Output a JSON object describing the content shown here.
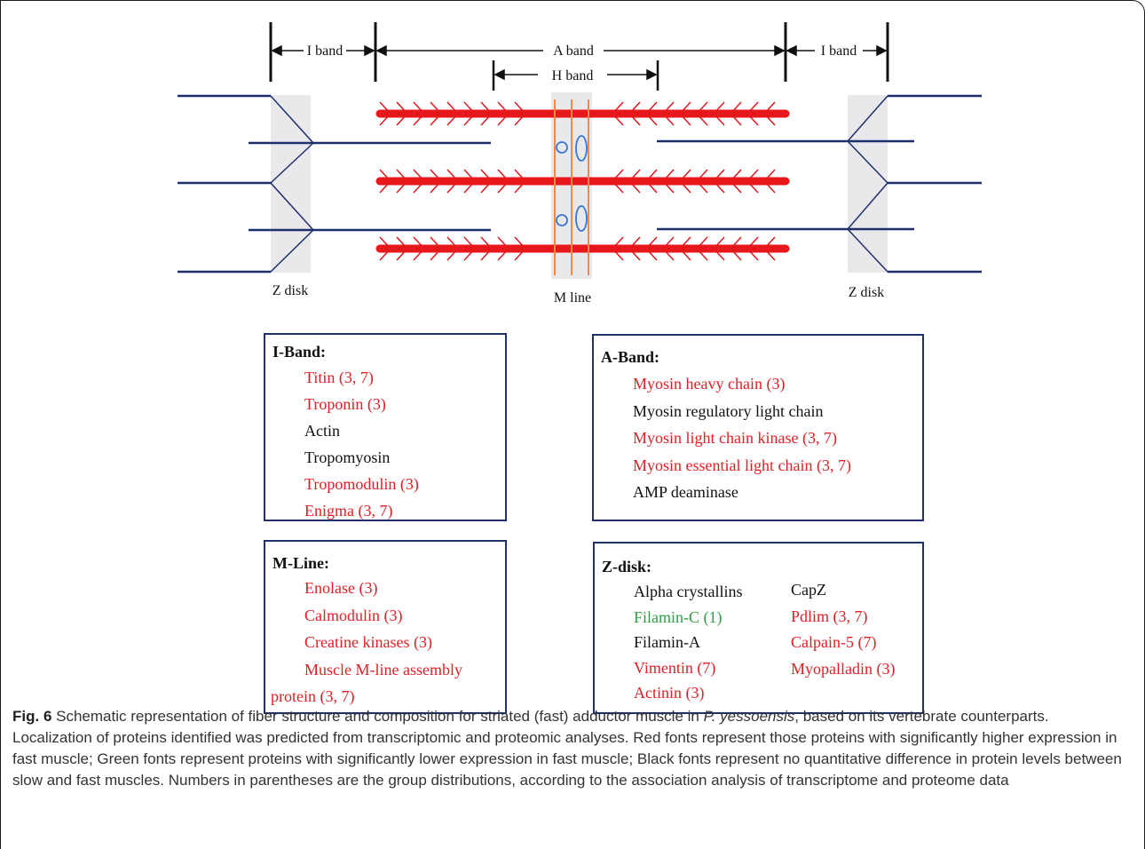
{
  "diagram": {
    "labels": {
      "i_band_left": "I band",
      "a_band": "A band",
      "i_band_right": "I band",
      "h_band": "H band",
      "z_disk_left": "Z disk",
      "m_line": "M line",
      "z_disk_right": "Z disk"
    },
    "colors": {
      "thick_filament": "#e8171c",
      "thin_filament": "#1f2f6b",
      "m_line": "#ef8a4a",
      "z_disk_shade": "#e9e9ec",
      "ellipse": "#3a76d6"
    }
  },
  "boxes": {
    "i_band": {
      "title": "I-Band:",
      "items": [
        {
          "text": "Titin (3, 7)",
          "color": "red"
        },
        {
          "text": "Troponin (3)",
          "color": "red"
        },
        {
          "text": "Actin",
          "color": "black"
        },
        {
          "text": "Tropomyosin",
          "color": "black"
        },
        {
          "text": "Tropomodulin (3)",
          "color": "red"
        },
        {
          "text": "Enigma (3, 7)",
          "color": "red"
        }
      ]
    },
    "a_band": {
      "title": "A-Band:",
      "items": [
        {
          "text": "Myosin heavy chain (3)",
          "color": "red"
        },
        {
          "text": "Myosin regulatory light chain",
          "color": "black"
        },
        {
          "text": "Myosin light chain kinase (3, 7)",
          "color": "red"
        },
        {
          "text": "Myosin essential light chain (3, 7)",
          "color": "red"
        },
        {
          "text": "AMP deaminase",
          "color": "black"
        }
      ]
    },
    "m_line": {
      "title": "M-Line:",
      "items": [
        {
          "text": "Enolase (3)",
          "color": "red"
        },
        {
          "text": "Calmodulin (3)",
          "color": "red"
        },
        {
          "text": "Creatine kinases (3)",
          "color": "red"
        },
        {
          "text": "Muscle M-line assembly",
          "color": "red"
        },
        {
          "text": "protein (3, 7)",
          "color": "red"
        }
      ]
    },
    "z_disk": {
      "title": "Z-disk:",
      "left_items": [
        {
          "text": "Alpha crystallins",
          "color": "black"
        },
        {
          "text": "Filamin-C (1)",
          "color": "green"
        },
        {
          "text": "Filamin-A",
          "color": "black"
        },
        {
          "text": "Vimentin (7)",
          "color": "red"
        },
        {
          "text": "Actinin (3)",
          "color": "red"
        }
      ],
      "right_items": [
        {
          "text": "CapZ",
          "color": "black"
        },
        {
          "text": "Pdlim (3, 7)",
          "color": "red"
        },
        {
          "text": "Calpain-5 (7)",
          "color": "red"
        },
        {
          "text": "Myopalladin (3)",
          "color": "red"
        }
      ]
    }
  },
  "caption": {
    "label": "Fig. 6",
    "text_1": " Schematic representation of fiber structure and composition for striated (fast) adductor muscle in ",
    "species": "P. yessoensis",
    "text_2": ", based on its vertebrate counterparts. Localization of proteins identified was predicted from transcriptomic and proteomic analyses. Red fonts represent those proteins with significantly higher expression in fast muscle; Green fonts represent proteins with significantly lower expression in fast muscle; Black fonts represent no quantitative difference in protein levels between slow and fast muscles. Numbers in parentheses are the group distributions, according to the association analysis of transcriptome and proteome data"
  }
}
